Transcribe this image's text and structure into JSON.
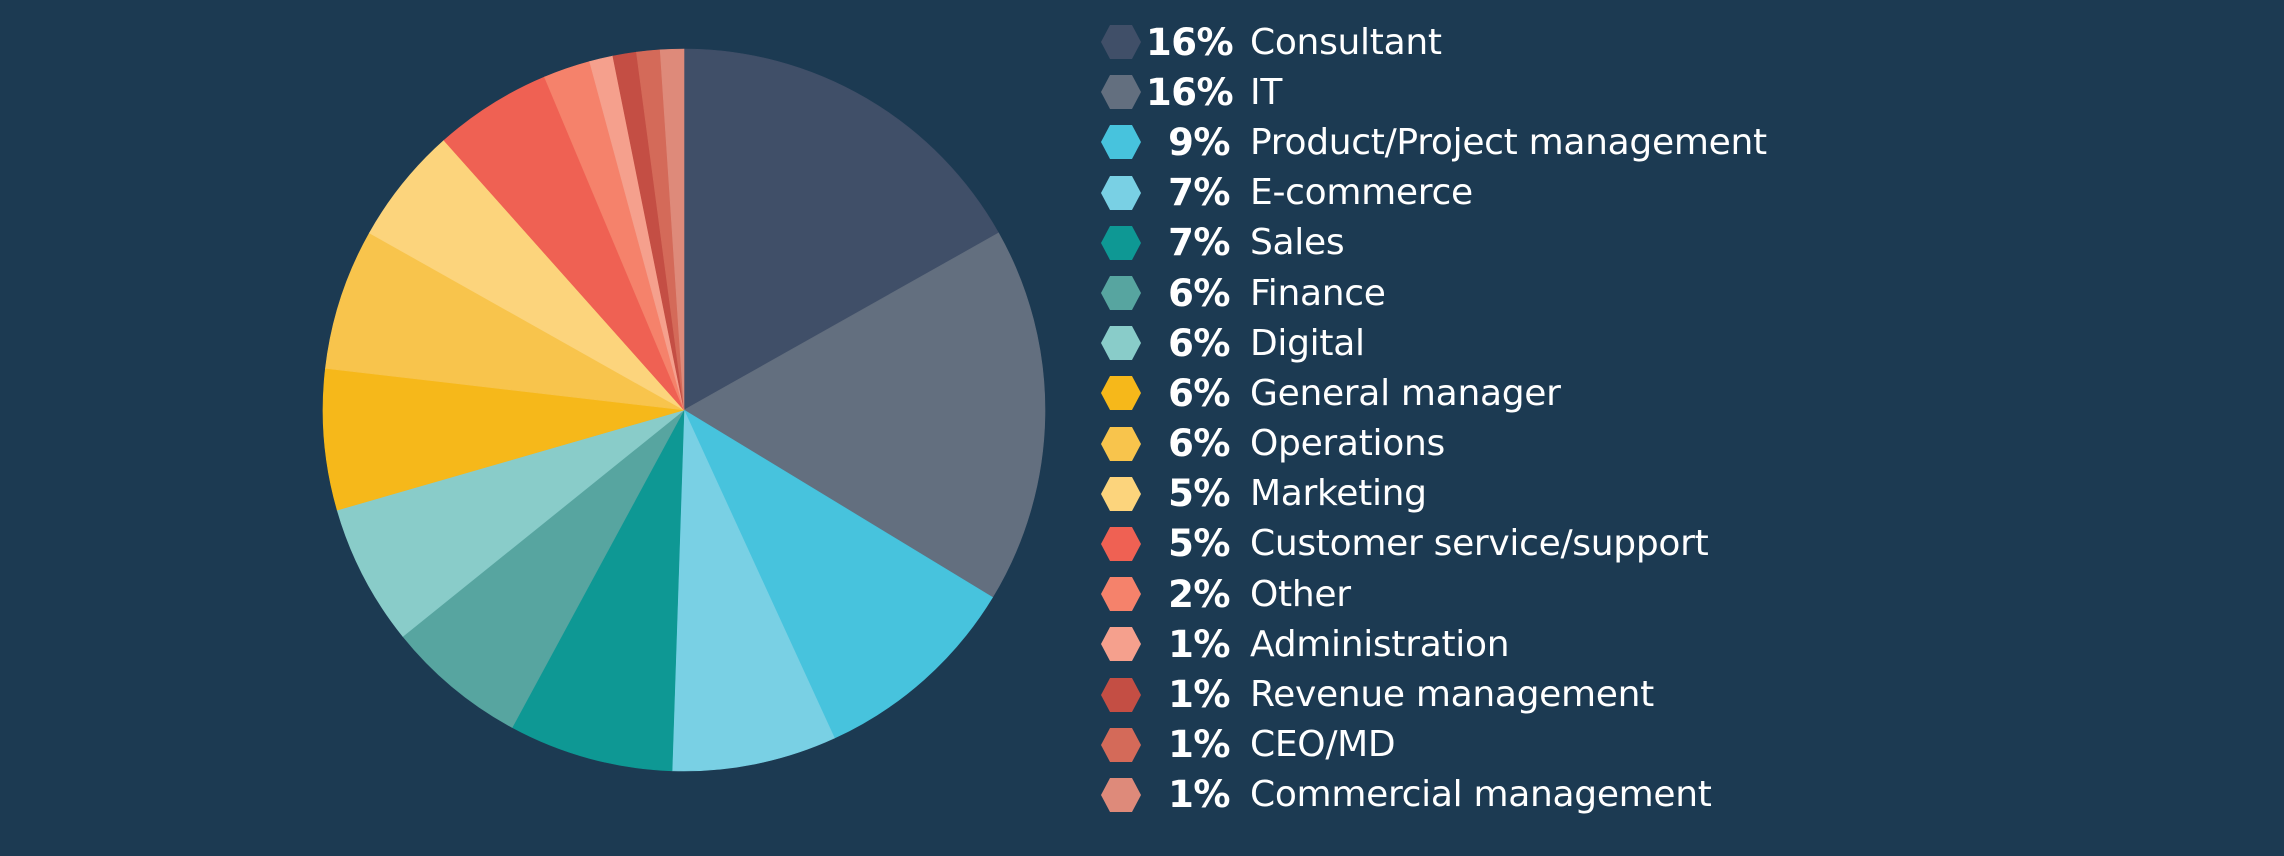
{
  "chart_data": {
    "type": "pie",
    "start_angle": "12 o'clock",
    "direction": "clockwise",
    "legend_position": "right",
    "slices": [
      {
        "label": "Consultant",
        "value": 16,
        "value_label": "16%",
        "color": "#404f68"
      },
      {
        "label": "IT",
        "value": 16,
        "value_label": "16%",
        "color": "#636f7f"
      },
      {
        "label": "Product/Project management",
        "value": 9,
        "value_label": "9%",
        "color": "#47c3dd"
      },
      {
        "label": "E-commerce",
        "value": 7,
        "value_label": "7%",
        "color": "#79d0e4"
      },
      {
        "label": "Sales",
        "value": 7,
        "value_label": "7%",
        "color": "#0e9894"
      },
      {
        "label": "Finance",
        "value": 6,
        "value_label": "6%",
        "color": "#57a5a0"
      },
      {
        "label": "Digital",
        "value": 6,
        "value_label": "6%",
        "color": "#89ccc9"
      },
      {
        "label": "General manager",
        "value": 6,
        "value_label": "6%",
        "color": "#f6b81a"
      },
      {
        "label": "Operations",
        "value": 6,
        "value_label": "6%",
        "color": "#f8c44c"
      },
      {
        "label": "Marketing",
        "value": 5,
        "value_label": "5%",
        "color": "#fcd47c"
      },
      {
        "label": "Customer service/support",
        "value": 5,
        "value_label": "5%",
        "color": "#ef6153"
      },
      {
        "label": "Other",
        "value": 2,
        "value_label": "2%",
        "color": "#f5826b"
      },
      {
        "label": "Administration",
        "value": 1,
        "value_label": "1%",
        "color": "#f5a08d"
      },
      {
        "label": "Revenue management",
        "value": 1,
        "value_label": "1%",
        "color": "#c44e44"
      },
      {
        "label": "CEO/MD",
        "value": 1,
        "value_label": "1%",
        "color": "#d46a59"
      },
      {
        "label": "Commercial management",
        "value": 1,
        "value_label": "1%",
        "color": "#de8a7a"
      }
    ]
  },
  "colors": {
    "background": "#1c3a52",
    "text": "#ffffff"
  }
}
